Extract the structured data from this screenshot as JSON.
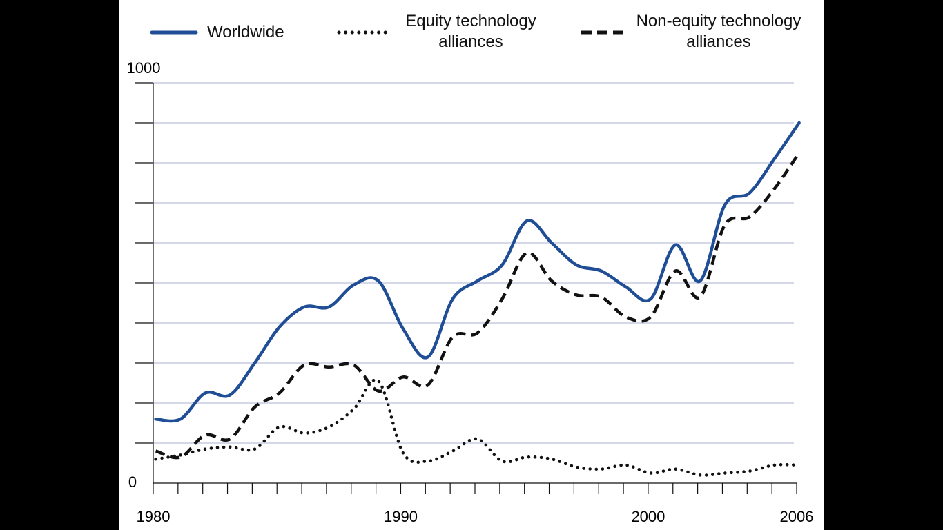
{
  "colors": {
    "worldwide": "#1f4e96",
    "equity": "#111111",
    "non_equity": "#111111",
    "gridline": "#c5cbe0",
    "axis": "#111111",
    "panel_background": "#ffffff",
    "letterbox": "#000000"
  },
  "legend": [
    {
      "key": "worldwide",
      "label": "Worldwide",
      "style": "solid"
    },
    {
      "key": "equity",
      "label": "Equity technology\nalliances",
      "style": "dotted"
    },
    {
      "key": "non_equity",
      "label": "Non-equity technology\nalliances",
      "style": "dashed"
    }
  ],
  "chart_data": {
    "type": "line",
    "title": "",
    "xlabel": "",
    "ylabel": "",
    "xlim": [
      1980,
      2006
    ],
    "ylim": [
      0,
      1000
    ],
    "grid": true,
    "legend_position": "top",
    "y_tick_labels": [
      {
        "value": 1000,
        "label": "1000"
      },
      {
        "value": 0,
        "label": "0"
      }
    ],
    "x_tick_labels": [
      {
        "value": 1980,
        "label": "1980"
      },
      {
        "value": 1990,
        "label": "1990"
      },
      {
        "value": 2000,
        "label": "2000"
      },
      {
        "value": 2006,
        "label": "2006"
      }
    ],
    "x": [
      1980,
      1981,
      1982,
      1983,
      1984,
      1985,
      1986,
      1987,
      1988,
      1989,
      1990,
      1991,
      1992,
      1993,
      1994,
      1995,
      1996,
      1997,
      1998,
      1999,
      2000,
      2001,
      2002,
      2003,
      2004,
      2005,
      2006
    ],
    "series": [
      {
        "key": "worldwide",
        "name": "Worldwide",
        "style": "solid",
        "values": [
          160,
          160,
          225,
          220,
          300,
          390,
          440,
          440,
          495,
          505,
          385,
          315,
          460,
          505,
          545,
          655,
          600,
          545,
          530,
          490,
          460,
          595,
          505,
          695,
          725,
          810,
          900
        ]
      },
      {
        "key": "equity",
        "name": "Equity technology alliances",
        "style": "dotted",
        "values": [
          60,
          70,
          85,
          90,
          85,
          140,
          125,
          140,
          185,
          255,
          75,
          55,
          80,
          110,
          55,
          65,
          60,
          40,
          35,
          45,
          25,
          35,
          20,
          25,
          30,
          45,
          45
        ]
      },
      {
        "key": "non_equity",
        "name": "Non-equity technology alliances",
        "style": "dashed",
        "values": [
          80,
          65,
          120,
          110,
          190,
          225,
          295,
          290,
          295,
          230,
          265,
          245,
          365,
          375,
          460,
          575,
          505,
          470,
          465,
          415,
          415,
          530,
          465,
          645,
          665,
          735,
          825
        ]
      }
    ]
  }
}
